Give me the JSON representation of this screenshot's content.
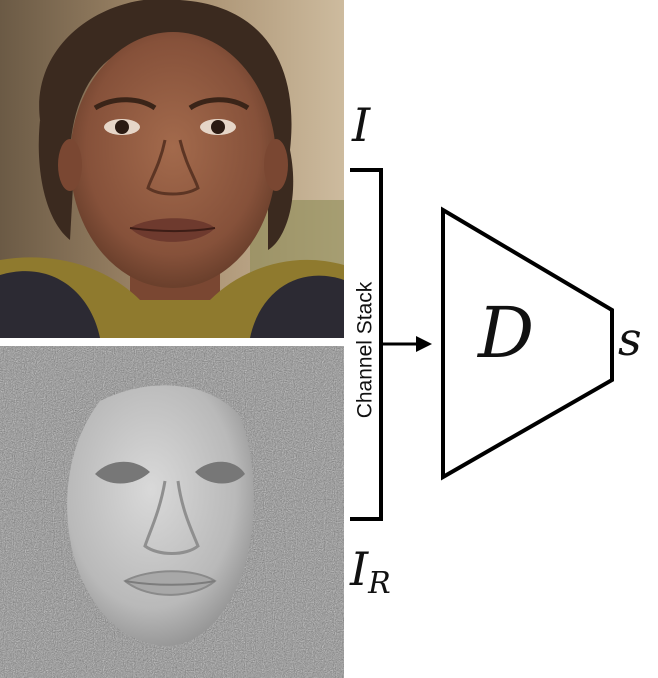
{
  "labels": {
    "input_image": "I",
    "rendered_image": "I",
    "rendered_subscript": "R",
    "channel_stack": "Channel Stack",
    "discriminator": "D",
    "score": "s"
  },
  "icons": {
    "photo": "face-photo",
    "render": "face-3d-render"
  }
}
